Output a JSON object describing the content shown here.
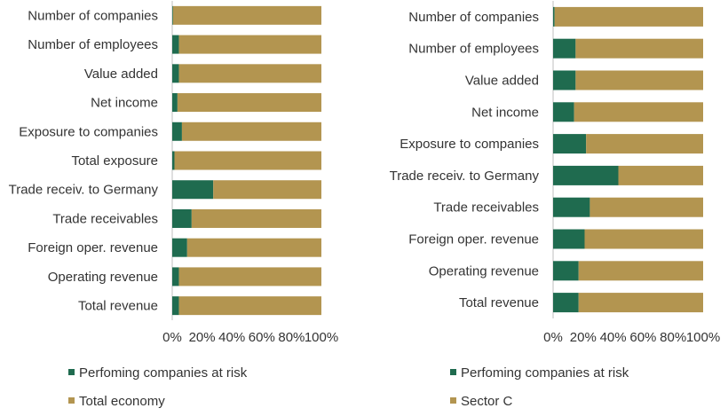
{
  "colors": {
    "at_risk": "#1f6b4f",
    "remainder": "#b39550",
    "axis": "#bfbfbf",
    "text": "#333333"
  },
  "chart_data": [
    {
      "type": "bar",
      "orientation": "horizontal",
      "stacked": true,
      "categories": [
        "Number of companies",
        "Number of employees",
        "Value added",
        "Net income",
        "Exposure to companies",
        "Total exposure",
        "Trade receiv. to Germany",
        "Trade receivables",
        "Foreign oper. revenue",
        "Operating revenue",
        "Total revenue"
      ],
      "series": [
        {
          "name": "Perfoming companies at risk",
          "color": "#1f6b4f",
          "values": [
            0.5,
            4.5,
            4.5,
            3.5,
            6.5,
            1.5,
            27.5,
            13,
            10,
            4.5,
            4.5
          ]
        },
        {
          "name": "Total economy",
          "color": "#b39550",
          "values": [
            99.5,
            95.5,
            95.5,
            96.5,
            93.5,
            98.5,
            72.5,
            87,
            90,
            95.5,
            95.5
          ]
        }
      ],
      "xlim": [
        0,
        100
      ],
      "xticks": [
        "0%",
        "20%",
        "40%",
        "60%",
        "80%",
        "100%"
      ],
      "legend_position": "bottom"
    },
    {
      "type": "bar",
      "orientation": "horizontal",
      "stacked": true,
      "categories": [
        "Number of companies",
        "Number of employees",
        "Value added",
        "Net income",
        "Exposure to companies",
        "Trade receiv. to Germany",
        "Trade receivables",
        "Foreign oper. revenue",
        "Operating revenue",
        "Total revenue"
      ],
      "series": [
        {
          "name": "Perfoming companies at risk",
          "color": "#1f6b4f",
          "values": [
            1,
            15,
            15,
            14,
            22,
            43.5,
            24.5,
            21,
            17,
            17
          ]
        },
        {
          "name": "Sector C",
          "color": "#b39550",
          "values": [
            99,
            85,
            85,
            86,
            78,
            56.5,
            75.5,
            79,
            83,
            83
          ]
        }
      ],
      "xlim": [
        0,
        100
      ],
      "xticks": [
        "0%",
        "20%",
        "40%",
        "60%",
        "80%",
        "100%"
      ],
      "legend_position": "bottom"
    }
  ]
}
